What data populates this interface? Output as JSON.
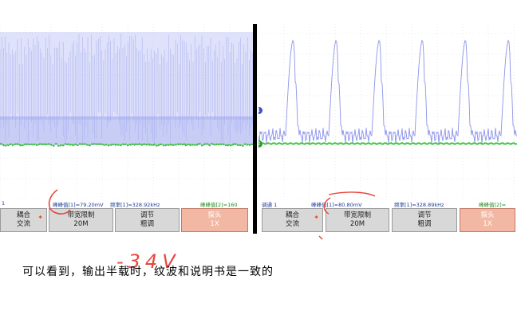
{
  "left_scope": {
    "status": {
      "channel": "1",
      "vpp_label": "峰峰值[1]=79.20mV",
      "freq_label": "频率[1]=328.92kHz",
      "ch2_label": "峰峰值[2]=160"
    },
    "softkeys": [
      {
        "line1": "耦合",
        "line2": "交流"
      },
      {
        "line1": "带宽限制",
        "line2": "20M"
      },
      {
        "line1": "调节",
        "line2": "粗调"
      },
      {
        "line1": "探头",
        "line2": "1X"
      }
    ]
  },
  "right_scope": {
    "status": {
      "channel": "调通 1",
      "vpp_label": "峰峰值[1]=80.80mV",
      "freq_label": "频率[1]=328.89kHz",
      "ch2_label": "峰峰值[2]="
    },
    "softkeys": [
      {
        "line1": "耦合",
        "line2": "交流"
      },
      {
        "line1": "带宽限制",
        "line2": "20M"
      },
      {
        "line1": "调节",
        "line2": "粗调"
      },
      {
        "line1": "探头",
        "line2": "1X"
      }
    ],
    "markers": [
      "1",
      "2"
    ]
  },
  "annotation": {
    "handwritten": "-34V"
  },
  "caption": "可以看到，输出半载时，纹波和说明书是一致的",
  "colors": {
    "trace_ch1": "#8c94ea",
    "trace_ch2": "#3cc43c",
    "ink": "#e8463c",
    "grid": "#c8c8c8"
  }
}
